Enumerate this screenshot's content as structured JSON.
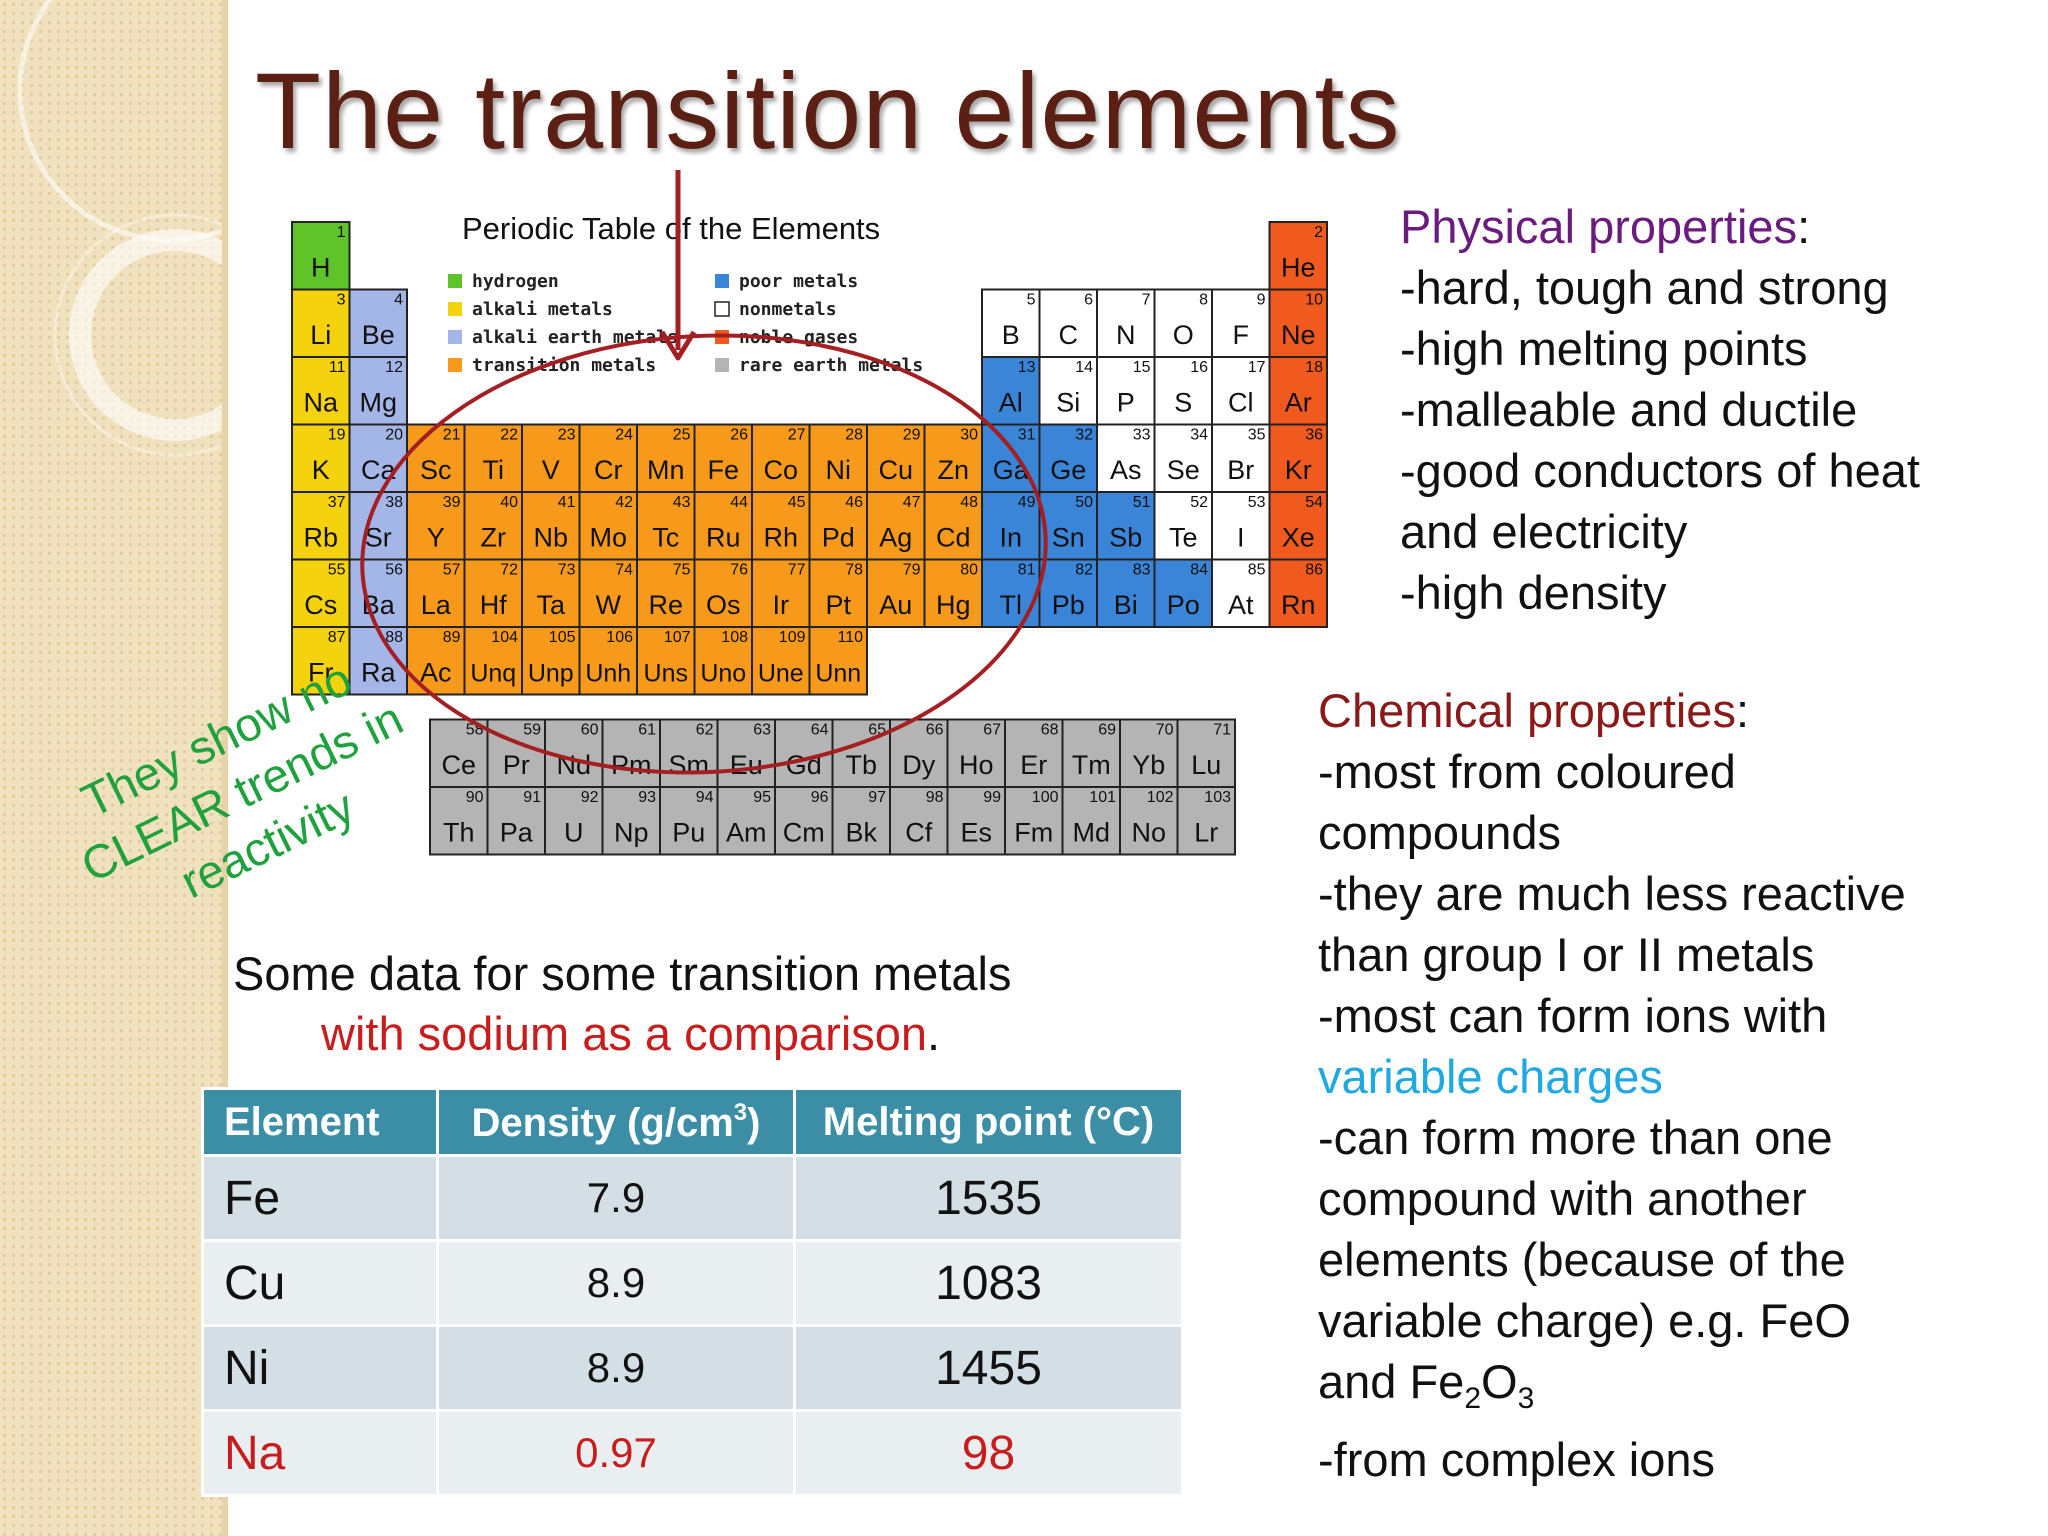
{
  "slide": {
    "title": "The transition elements"
  },
  "periodic_table": {
    "title": "Periodic Table of the Elements",
    "legend": [
      {
        "label": "hydrogen",
        "color": "#5fc42a"
      },
      {
        "label": "alkali metals",
        "color": "#f5d20e"
      },
      {
        "label": "alkali earth metals",
        "color": "#a4b6e8"
      },
      {
        "label": "transition metals",
        "color": "#f79a1c"
      },
      {
        "label": "poor metals",
        "color": "#3b85d9"
      },
      {
        "label": "nonmetals",
        "color": "#ffffff"
      },
      {
        "label": "noble gases",
        "color": "#f05a1e"
      },
      {
        "label": "rare earth metals",
        "color": "#b4b4b4"
      }
    ],
    "main_rows": [
      [
        [
          "1",
          "H",
          "h"
        ]
      ],
      [
        [
          "3",
          "Li",
          "a"
        ],
        [
          "4",
          "Be",
          "e"
        ],
        [
          "5",
          "B",
          "n"
        ],
        [
          "6",
          "C",
          "n"
        ],
        [
          "7",
          "N",
          "n"
        ],
        [
          "8",
          "O",
          "n"
        ],
        [
          "9",
          "F",
          "n"
        ],
        [
          "10",
          "Ne",
          "g"
        ]
      ],
      [
        [
          "11",
          "Na",
          "a"
        ],
        [
          "12",
          "Mg",
          "e"
        ],
        [
          "13",
          "Al",
          "p"
        ],
        [
          "14",
          "Si",
          "n"
        ],
        [
          "15",
          "P",
          "n"
        ],
        [
          "16",
          "S",
          "n"
        ],
        [
          "17",
          "Cl",
          "n"
        ],
        [
          "18",
          "Ar",
          "g"
        ]
      ],
      [
        [
          "19",
          "K",
          "a"
        ],
        [
          "20",
          "Ca",
          "e"
        ],
        [
          "21",
          "Sc",
          "t"
        ],
        [
          "22",
          "Ti",
          "t"
        ],
        [
          "23",
          "V",
          "t"
        ],
        [
          "24",
          "Cr",
          "t"
        ],
        [
          "25",
          "Mn",
          "t"
        ],
        [
          "26",
          "Fe",
          "t"
        ],
        [
          "27",
          "Co",
          "t"
        ],
        [
          "28",
          "Ni",
          "t"
        ],
        [
          "29",
          "Cu",
          "t"
        ],
        [
          "30",
          "Zn",
          "t"
        ],
        [
          "31",
          "Ga",
          "p"
        ],
        [
          "32",
          "Ge",
          "p"
        ],
        [
          "33",
          "As",
          "n"
        ],
        [
          "34",
          "Se",
          "n"
        ],
        [
          "35",
          "Br",
          "n"
        ],
        [
          "36",
          "Kr",
          "g"
        ]
      ],
      [
        [
          "37",
          "Rb",
          "a"
        ],
        [
          "38",
          "Sr",
          "e"
        ],
        [
          "39",
          "Y",
          "t"
        ],
        [
          "40",
          "Zr",
          "t"
        ],
        [
          "41",
          "Nb",
          "t"
        ],
        [
          "42",
          "Mo",
          "t"
        ],
        [
          "43",
          "Tc",
          "t"
        ],
        [
          "44",
          "Ru",
          "t"
        ],
        [
          "45",
          "Rh",
          "t"
        ],
        [
          "46",
          "Pd",
          "t"
        ],
        [
          "47",
          "Ag",
          "t"
        ],
        [
          "48",
          "Cd",
          "t"
        ],
        [
          "49",
          "In",
          "p"
        ],
        [
          "50",
          "Sn",
          "p"
        ],
        [
          "51",
          "Sb",
          "p"
        ],
        [
          "52",
          "Te",
          "n"
        ],
        [
          "53",
          "I",
          "n"
        ],
        [
          "54",
          "Xe",
          "g"
        ]
      ],
      [
        [
          "55",
          "Cs",
          "a"
        ],
        [
          "56",
          "Ba",
          "e"
        ],
        [
          "57",
          "La",
          "t"
        ],
        [
          "72",
          "Hf",
          "t"
        ],
        [
          "73",
          "Ta",
          "t"
        ],
        [
          "74",
          "W",
          "t"
        ],
        [
          "75",
          "Re",
          "t"
        ],
        [
          "76",
          "Os",
          "t"
        ],
        [
          "77",
          "Ir",
          "t"
        ],
        [
          "78",
          "Pt",
          "t"
        ],
        [
          "79",
          "Au",
          "t"
        ],
        [
          "80",
          "Hg",
          "t"
        ],
        [
          "81",
          "Tl",
          "p"
        ],
        [
          "82",
          "Pb",
          "p"
        ],
        [
          "83",
          "Bi",
          "p"
        ],
        [
          "84",
          "Po",
          "p"
        ],
        [
          "85",
          "At",
          "n"
        ],
        [
          "86",
          "Rn",
          "g"
        ]
      ],
      [
        [
          "87",
          "Fr",
          "a"
        ],
        [
          "88",
          "Ra",
          "e"
        ],
        [
          "89",
          "Ac",
          "t"
        ],
        [
          "104",
          "Unq",
          "t"
        ],
        [
          "105",
          "Unp",
          "t"
        ],
        [
          "106",
          "Unh",
          "t"
        ],
        [
          "107",
          "Uns",
          "t"
        ],
        [
          "108",
          "Uno",
          "t"
        ],
        [
          "109",
          "Une",
          "t"
        ],
        [
          "110",
          "Unn",
          "t"
        ]
      ]
    ],
    "he": [
      "2",
      "He",
      "g"
    ],
    "lanthanides": [
      [
        "58",
        "Ce"
      ],
      [
        "59",
        "Pr"
      ],
      [
        "60",
        "Nd"
      ],
      [
        "61",
        "Pm"
      ],
      [
        "62",
        "Sm"
      ],
      [
        "63",
        "Eu"
      ],
      [
        "64",
        "Gd"
      ],
      [
        "65",
        "Tb"
      ],
      [
        "66",
        "Dy"
      ],
      [
        "67",
        "Ho"
      ],
      [
        "68",
        "Er"
      ],
      [
        "69",
        "Tm"
      ],
      [
        "70",
        "Yb"
      ],
      [
        "71",
        "Lu"
      ]
    ],
    "actinides": [
      [
        "90",
        "Th"
      ],
      [
        "91",
        "Pa"
      ],
      [
        "92",
        "U"
      ],
      [
        "93",
        "Np"
      ],
      [
        "94",
        "Pu"
      ],
      [
        "95",
        "Am"
      ],
      [
        "96",
        "Cm"
      ],
      [
        "97",
        "Bk"
      ],
      [
        "98",
        "Cf"
      ],
      [
        "99",
        "Es"
      ],
      [
        "100",
        "Fm"
      ],
      [
        "101",
        "Md"
      ],
      [
        "102",
        "No"
      ],
      [
        "103",
        "Lr"
      ]
    ]
  },
  "physical": {
    "heading": "Physical properties",
    "colon": ":",
    "lines": [
      "-hard, tough and strong",
      "-high melting points",
      "-malleable and ductile",
      "-good conductors of heat",
      "and electricity",
      "-high density"
    ]
  },
  "chemical": {
    "heading": "Chemical properties",
    "colon": ":",
    "l1": "-most from coloured",
    "l2": "compounds",
    "l3": "-they are much less reactive",
    "l4": "than group I or II metals",
    "l5": "-most can form ions with",
    "l6": "variable charges",
    "l7": "-can form more than one",
    "l8": "compound with another",
    "l9": "elements (because of the",
    "l10": "variable charge) e.g. FeO",
    "l11_a": "and Fe",
    "l11_sub1": "2",
    "l11_b": "O",
    "l11_sub2": "3",
    "l12": "-from complex ions"
  },
  "note": {
    "l1": "They show no",
    "l2": "CLEAR trends in",
    "l3": "reactivity"
  },
  "caption": {
    "line1": "Some data for some transition metals",
    "line2_red": "with sodium as a comparison",
    "line2_end": "."
  },
  "table": {
    "headers": {
      "element": "Element",
      "density": "Density (g/cm",
      "density_sup": "3",
      "density_end": ")",
      "melting": "Melting point (°C)"
    },
    "rows": [
      {
        "element": "Fe",
        "density": "7.9",
        "melting": "1535"
      },
      {
        "element": "Cu",
        "density": "8.9",
        "melting": "1083"
      },
      {
        "element": "Ni",
        "density": "8.9",
        "melting": "1455"
      },
      {
        "element": "Na",
        "density": "0.97",
        "melting": "98"
      }
    ]
  }
}
